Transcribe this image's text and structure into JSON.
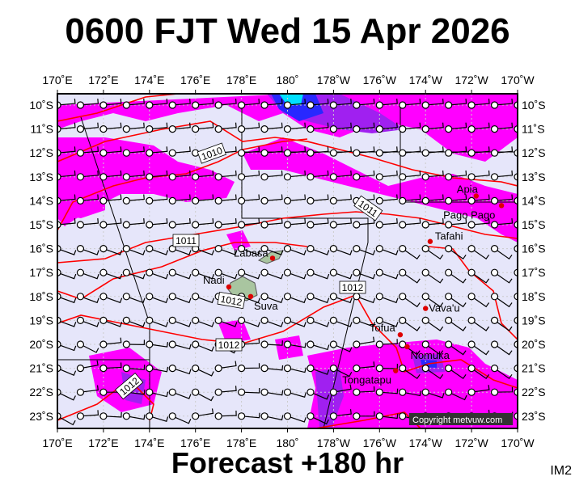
{
  "title": "0600 FJT Wed 15 Apr 2026",
  "subtitle": "Forecast +180 hr",
  "map_id": "IM2",
  "copyright": "Copyright metvuw.com",
  "lon_labels": [
    "170˚E",
    "172˚E",
    "174˚E",
    "176˚E",
    "178˚E",
    "180˚",
    "178˚W",
    "176˚W",
    "174˚W",
    "172˚W",
    "170˚W"
  ],
  "lat_labels": [
    "10˚S",
    "11˚S",
    "12˚S",
    "13˚S",
    "14˚S",
    "15˚S",
    "16˚S",
    "17˚S",
    "18˚S",
    "19˚S",
    "20˚S",
    "21˚S",
    "22˚S",
    "23˚S"
  ],
  "colors": {
    "ocean": "#e6e6fa",
    "rain_light": "#ff00ff",
    "rain_mid": "#a020f0",
    "rain_heavy": "#2828ff",
    "rain_max": "#00e0ff",
    "isobar": "#ff0000",
    "city": "#dd0000"
  },
  "cities": [
    {
      "name": "Apia",
      "lon": -171.8,
      "lat": -13.8
    },
    {
      "name": "Pago Pago",
      "lon": -170.7,
      "lat": -14.2
    },
    {
      "name": "Tafahi",
      "lon": -173.8,
      "lat": -15.7
    },
    {
      "name": "Vava'u",
      "lon": -174.0,
      "lat": -18.5
    },
    {
      "name": "Tofua",
      "lon": -175.1,
      "lat": -19.6
    },
    {
      "name": "Nomuka",
      "lon": -174.8,
      "lat": -20.1
    },
    {
      "name": "Tongatapu",
      "lon": -175.3,
      "lat": -21.1
    },
    {
      "name": "Labasa",
      "lon": 179.35,
      "lat": -16.4
    },
    {
      "name": "Nadi",
      "lon": 177.45,
      "lat": -17.6
    },
    {
      "name": "Suva",
      "lon": 178.4,
      "lat": -18.0
    }
  ],
  "isobar_labels": [
    "1010",
    "1011",
    "1011",
    "1012",
    "1012",
    "1012",
    "1012"
  ]
}
